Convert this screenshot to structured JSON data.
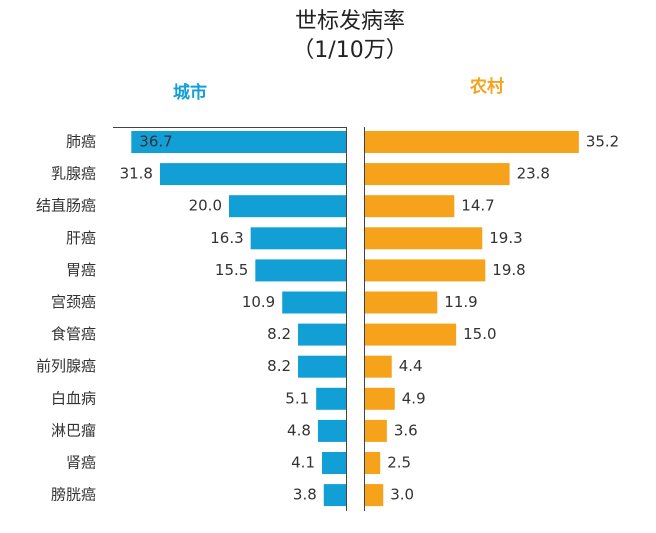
{
  "chart_data": {
    "type": "butterfly",
    "title": "世标发病率",
    "subtitle": "（1/10万）",
    "categories": [
      "肺癌",
      "乳腺癌",
      "结直肠癌",
      "肝癌",
      "胃癌",
      "宫颈癌",
      "食管癌",
      "前列腺癌",
      "白血病",
      "淋巴瘤",
      "肾癌",
      "膀胱癌"
    ],
    "xlim": [
      0,
      40
    ],
    "series": [
      {
        "name": "城市",
        "color": "#129fd6",
        "values": [
          36.7,
          31.8,
          20.0,
          16.3,
          15.5,
          10.9,
          8.2,
          8.2,
          5.1,
          4.8,
          4.1,
          3.8
        ],
        "value_labels": [
          "36.7",
          "31.8",
          "20.0",
          "16.3",
          "15.5",
          "10.9",
          "8.2",
          "8.2",
          "5.1",
          "4.8",
          "4.1",
          "3.8"
        ]
      },
      {
        "name": "农村",
        "color": "#f6a21a",
        "values": [
          35.2,
          23.8,
          14.7,
          19.3,
          19.8,
          11.9,
          15.0,
          4.4,
          4.9,
          3.6,
          2.5,
          3.0
        ],
        "value_labels": [
          "35.2",
          "23.8",
          "14.7",
          "19.3",
          "19.8",
          "11.9",
          "15.0",
          "4.4",
          "4.9",
          "3.6",
          "2.5",
          "3.0"
        ]
      }
    ]
  }
}
